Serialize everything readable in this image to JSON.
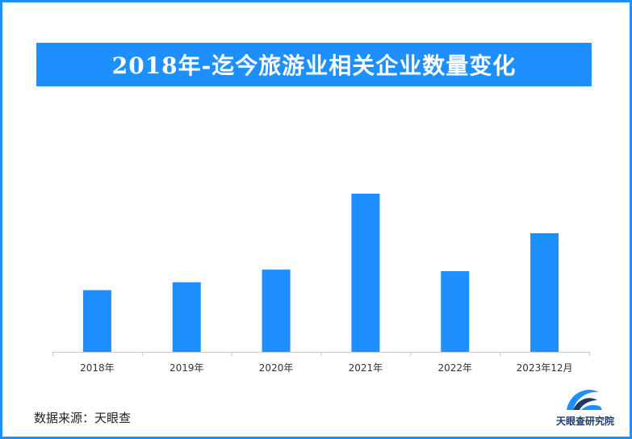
{
  "page": {
    "source_label": "数据来源：天眼查",
    "logo_text": "天眼查研究院"
  },
  "colors": {
    "accent": "#1e8fff",
    "axis": "#c8c8c8",
    "logo_dark": "#1e3a66"
  },
  "chart_data": {
    "type": "bar",
    "title": "2018年-迄今旅游业相关企业数量变化",
    "xlabel": "",
    "ylabel": "",
    "categories": [
      "2018年",
      "2019年",
      "2020年",
      "2021年",
      "2022年",
      "2023年12月"
    ],
    "values": [
      39,
      44,
      52,
      100,
      51,
      75
    ],
    "ylim": [
      0,
      100
    ],
    "y_axis_shown": false,
    "grid": false,
    "legend": "none"
  }
}
